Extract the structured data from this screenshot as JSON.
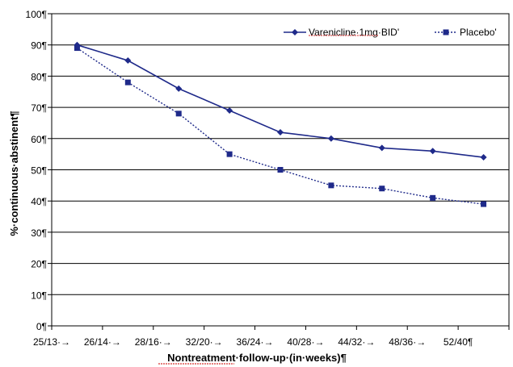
{
  "chart_data": {
    "type": "line",
    "title": "",
    "xlabel": "Nontreatment·follow-up·(in·weeks)¶",
    "ylabel": "%·continuous·abstinent¶",
    "ylim": [
      0,
      100
    ],
    "y_ticks": [
      "0¶",
      "10¶",
      "20¶",
      "30¶",
      "40¶",
      "50¶",
      "60¶",
      "70¶",
      "80¶",
      "90¶",
      "100¶"
    ],
    "categories": [
      "25/13",
      "26/14",
      "28/16",
      "32/20",
      "36/24",
      "40/28",
      "44/32",
      "48/36",
      "52/40¶"
    ],
    "x_tick_labels": [
      "25/13·→",
      "26/14·→",
      "28/16·→",
      "32/20·→",
      "36/24·→",
      "40/28·→",
      "44/32·→",
      "48/36·→",
      "52/40¶"
    ],
    "series": [
      {
        "name": "Varenicline·1mg·BID'",
        "color": "#1f2a8a",
        "line_style": "solid",
        "marker": "diamond",
        "values": [
          90,
          85,
          76,
          69,
          62,
          60,
          57,
          56,
          54
        ]
      },
      {
        "name": "Placebo'",
        "color": "#1f2a8a",
        "line_style": "dotted",
        "marker": "square",
        "values": [
          89,
          78,
          68,
          55,
          50,
          45,
          44,
          41,
          39
        ]
      }
    ],
    "grid": true,
    "legend_position": "top-right",
    "plot_border": true
  }
}
